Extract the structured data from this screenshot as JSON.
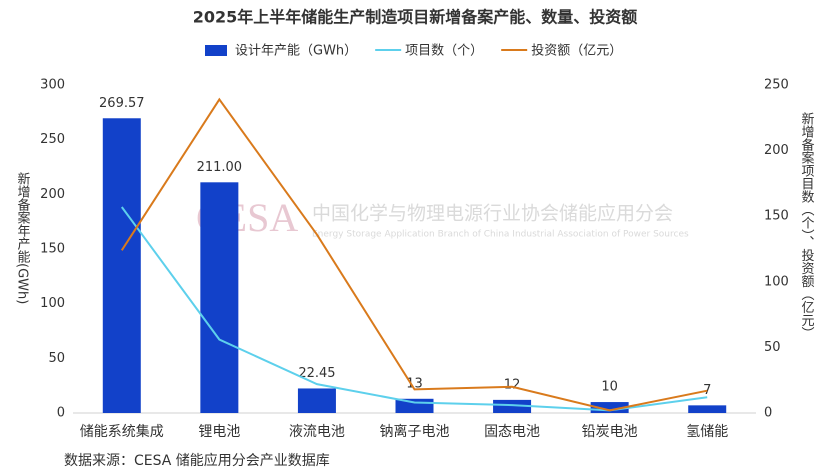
{
  "chart_data": {
    "type": "bar_line",
    "title": "2025年上半年储能生产制造项目新增备案产能、数量、投资额",
    "categories": [
      "储能系统集成",
      "锂电池",
      "液流电池",
      "钠离子电池",
      "固态电池",
      "铅炭电池",
      "氢储能"
    ],
    "series": [
      {
        "name": "设计年产能（GWh）",
        "color": "#1241c9",
        "kind": "bar",
        "axis": "y",
        "values": [
          269.57,
          211.0,
          22.45,
          13,
          12,
          10,
          7
        ],
        "value_labels": [
          "269.57",
          "211.00",
          "22.45",
          "13",
          "12",
          "10",
          "7"
        ]
      },
      {
        "name": "项目数（个）",
        "color": "#5dd0ec",
        "kind": "line",
        "axis": "y2",
        "values": [
          157,
          56,
          22,
          8,
          6,
          2,
          12
        ]
      },
      {
        "name": "投资额（亿元）",
        "color": "#d97a1c",
        "kind": "line",
        "axis": "y2",
        "values": [
          124,
          239,
          136,
          18,
          20,
          2,
          17
        ]
      }
    ],
    "ylim": [
      0,
      300
    ],
    "yticks": [
      0,
      50,
      100,
      150,
      200,
      250,
      300
    ],
    "y2lim": [
      0,
      250
    ],
    "y2ticks": [
      0,
      50,
      100,
      150,
      200,
      250
    ],
    "ylabel": "新增备案年产能(GWh)",
    "y2label": "新增备案项目数（个）、投资额（亿元）",
    "watermark": {
      "logo": "CESA",
      "name": "中国化学与物理电源行业协会储能应用分会",
      "subname": "Energy Storage Application Branch of China Industrial Association of Power Sources"
    },
    "source": "数据来源：CESA 储能应用分会产业数据库"
  }
}
